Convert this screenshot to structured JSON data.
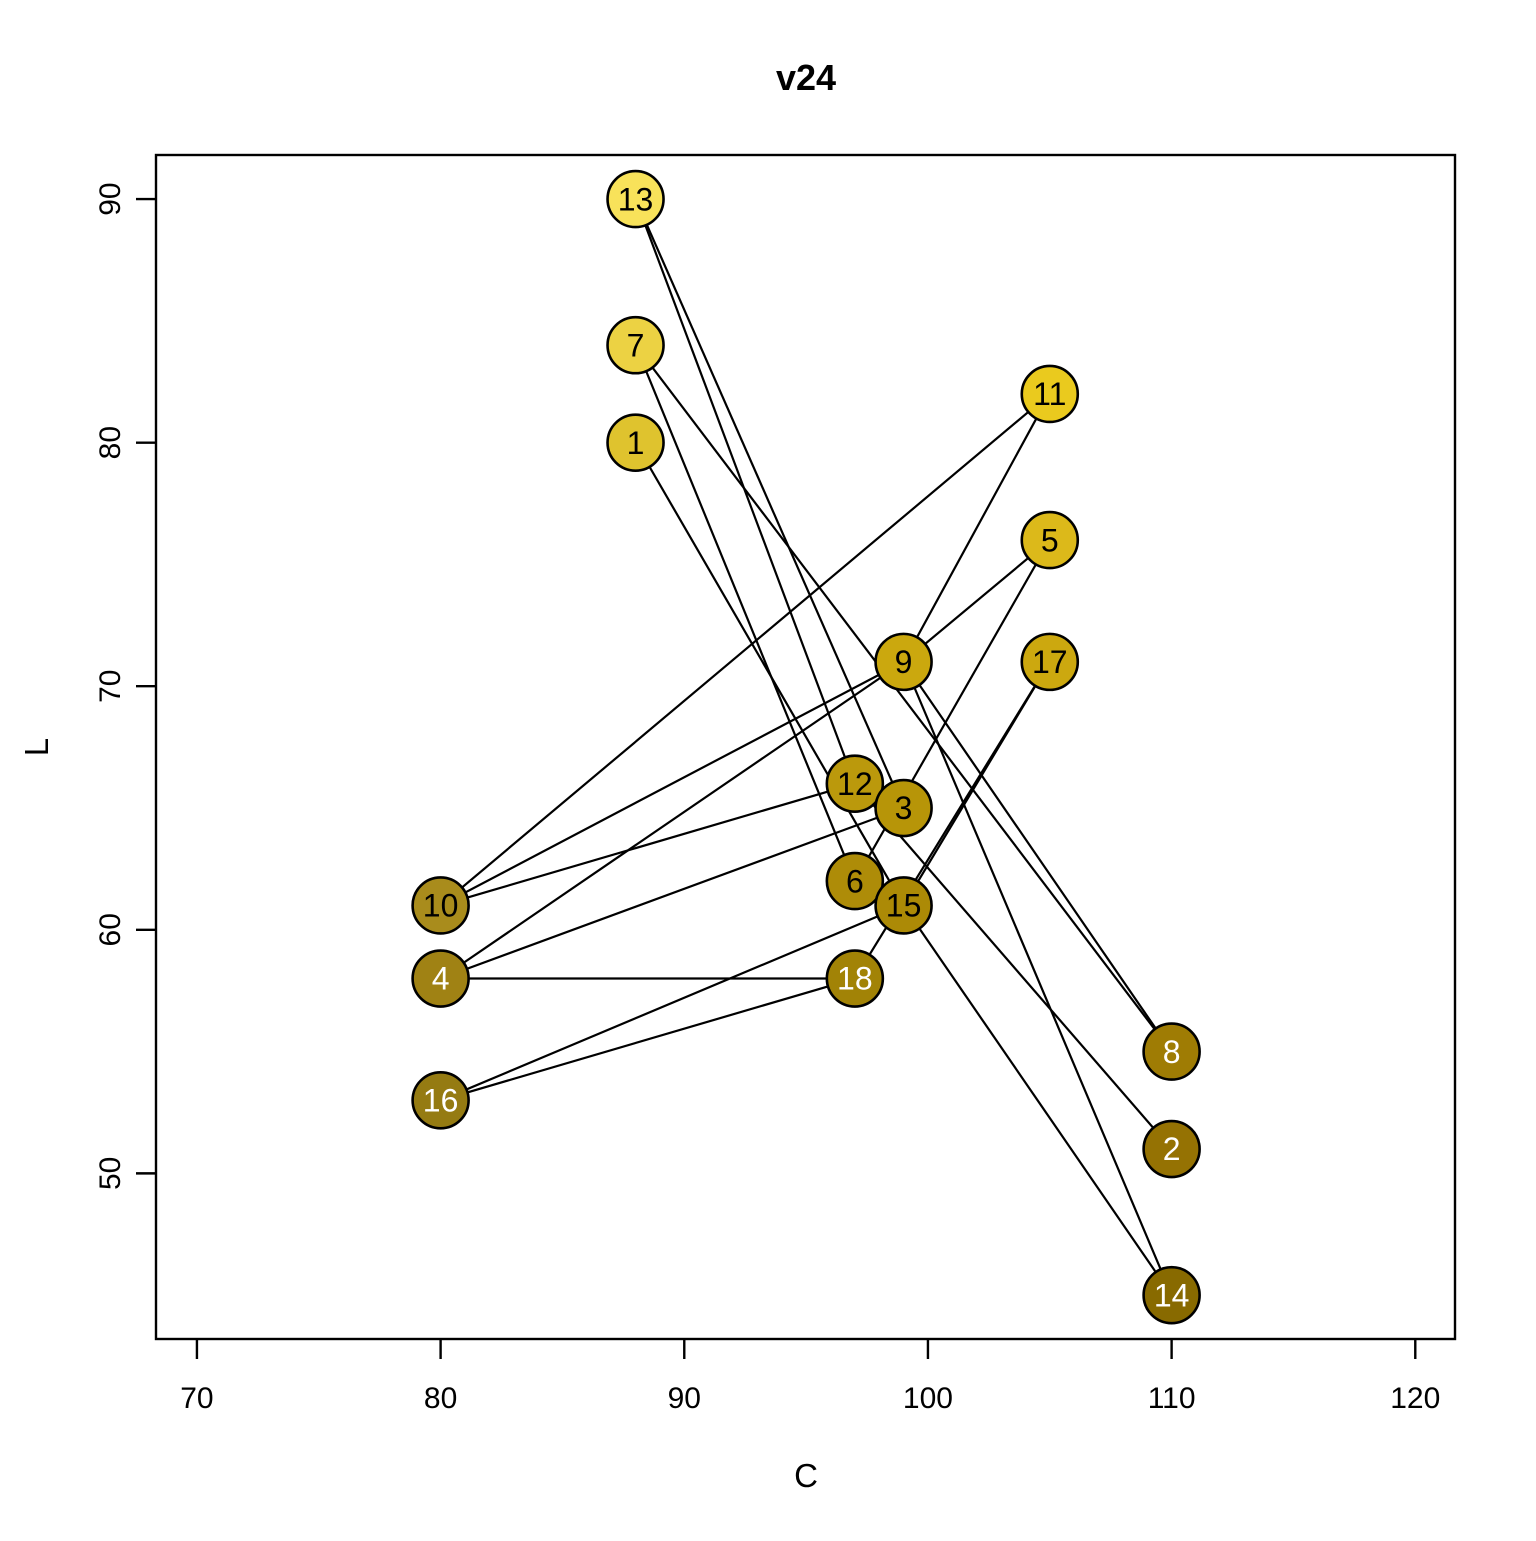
{
  "title": "v24",
  "axes": {
    "x": {
      "label": "C",
      "tick_values": [
        70,
        80,
        90,
        100,
        110,
        120
      ]
    },
    "y": {
      "label": "L",
      "tick_values": [
        50,
        60,
        70,
        80,
        90
      ]
    }
  },
  "chart_data": {
    "type": "scatter",
    "title": "v24",
    "xlabel": "C",
    "ylabel": "L",
    "xlim": [
      68.32,
      121.63
    ],
    "ylim": [
      43.2,
      91.81
    ],
    "grid": false,
    "legend_position": "none",
    "point_style": "numbered-circle",
    "points": [
      {
        "id": 1,
        "C": 88,
        "L": 80,
        "fill": "#DFC32E",
        "label_color": "#000000"
      },
      {
        "id": 2,
        "C": 110,
        "L": 51,
        "fill": "#957203",
        "label_color": "#FFFFFF"
      },
      {
        "id": 3,
        "C": 99,
        "L": 65,
        "fill": "#B79508",
        "label_color": "#000000"
      },
      {
        "id": 4,
        "C": 80,
        "L": 58,
        "fill": "#A08214",
        "label_color": "#FFFFFF"
      },
      {
        "id": 5,
        "C": 105,
        "L": 76,
        "fill": "#DCB91A",
        "label_color": "#000000"
      },
      {
        "id": 6,
        "C": 97,
        "L": 62,
        "fill": "#AE8C08",
        "label_color": "#000000"
      },
      {
        "id": 7,
        "C": 88,
        "L": 84,
        "fill": "#ECD243",
        "label_color": "#000000"
      },
      {
        "id": 8,
        "C": 110,
        "L": 55,
        "fill": "#9F7C04",
        "label_color": "#FFFFFF"
      },
      {
        "id": 9,
        "C": 99,
        "L": 71,
        "fill": "#CBA80E",
        "label_color": "#000000"
      },
      {
        "id": 10,
        "C": 80,
        "L": 61,
        "fill": "#A98C1C",
        "label_color": "#000000"
      },
      {
        "id": 11,
        "C": 105,
        "L": 82,
        "fill": "#EACA1E",
        "label_color": "#000000"
      },
      {
        "id": 12,
        "C": 97,
        "L": 66,
        "fill": "#BB990C",
        "label_color": "#000000"
      },
      {
        "id": 13,
        "C": 88,
        "L": 90,
        "fill": "#F8E25A",
        "label_color": "#000000"
      },
      {
        "id": 14,
        "C": 110,
        "L": 45,
        "fill": "#886A00",
        "label_color": "#FFFFFF"
      },
      {
        "id": 15,
        "C": 99,
        "L": 61,
        "fill": "#AC8A06",
        "label_color": "#000000"
      },
      {
        "id": 16,
        "C": 80,
        "L": 53,
        "fill": "#957B12",
        "label_color": "#FFFFFF"
      },
      {
        "id": 17,
        "C": 105,
        "L": 71,
        "fill": "#CCA80F",
        "label_color": "#000000"
      },
      {
        "id": 18,
        "C": 97,
        "L": 58,
        "fill": "#A28306",
        "label_color": "#FFFFFF"
      }
    ],
    "edges": [
      [
        1,
        15
      ],
      [
        2,
        12
      ],
      [
        3,
        4
      ],
      [
        3,
        13
      ],
      [
        4,
        9
      ],
      [
        4,
        18
      ],
      [
        5,
        6
      ],
      [
        5,
        9
      ],
      [
        6,
        7
      ],
      [
        7,
        8
      ],
      [
        8,
        9
      ],
      [
        9,
        10
      ],
      [
        9,
        11
      ],
      [
        9,
        14
      ],
      [
        10,
        11
      ],
      [
        10,
        12
      ],
      [
        12,
        13
      ],
      [
        14,
        15
      ],
      [
        15,
        16
      ],
      [
        15,
        17
      ],
      [
        16,
        18
      ],
      [
        17,
        18
      ]
    ],
    "draw_order": [
      13,
      7,
      11,
      1,
      5,
      9,
      17,
      12,
      3,
      6,
      15,
      10,
      18,
      4,
      8,
      16,
      2,
      14
    ]
  }
}
